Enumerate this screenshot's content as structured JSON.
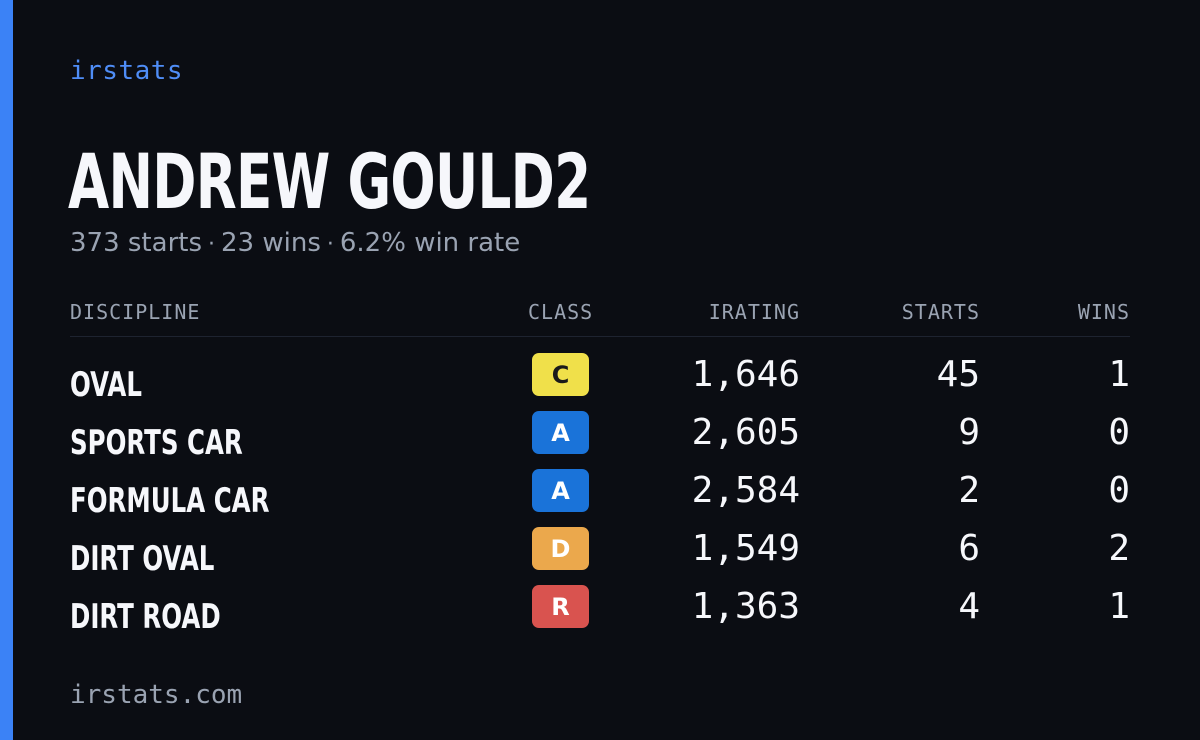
{
  "brand": "irstats",
  "player": {
    "name": "ANDREW GOULD2",
    "starts_text": "373 starts",
    "wins_text": "23 wins",
    "win_rate_text": "6.2% win rate",
    "separator": "·"
  },
  "table": {
    "headers": {
      "discipline": "DISCIPLINE",
      "class": "CLASS",
      "irating": "IRATING",
      "starts": "STARTS",
      "wins": "WINS"
    },
    "rows": [
      {
        "discipline": "OVAL",
        "class": "C",
        "class_color": "#f0e04a",
        "class_text_color": "#1a1a1a",
        "irating": "1,646",
        "starts": "45",
        "wins": "1"
      },
      {
        "discipline": "SPORTS CAR",
        "class": "A",
        "class_color": "#1a73d9",
        "class_text_color": "#ffffff",
        "irating": "2,605",
        "starts": "9",
        "wins": "0"
      },
      {
        "discipline": "FORMULA CAR",
        "class": "A",
        "class_color": "#1a73d9",
        "class_text_color": "#ffffff",
        "irating": "2,584",
        "starts": "2",
        "wins": "0"
      },
      {
        "discipline": "DIRT OVAL",
        "class": "D",
        "class_color": "#eba84c",
        "class_text_color": "#ffffff",
        "irating": "1,549",
        "starts": "6",
        "wins": "2"
      },
      {
        "discipline": "DIRT ROAD",
        "class": "R",
        "class_color": "#d9534f",
        "class_text_color": "#ffffff",
        "irating": "1,363",
        "starts": "4",
        "wins": "1"
      }
    ]
  },
  "footer": "irstats.com",
  "colors": {
    "background": "#0b0d13",
    "accent": "#3b82f6",
    "brand_text": "#4f8df7",
    "muted_text": "#9aa3b2"
  }
}
